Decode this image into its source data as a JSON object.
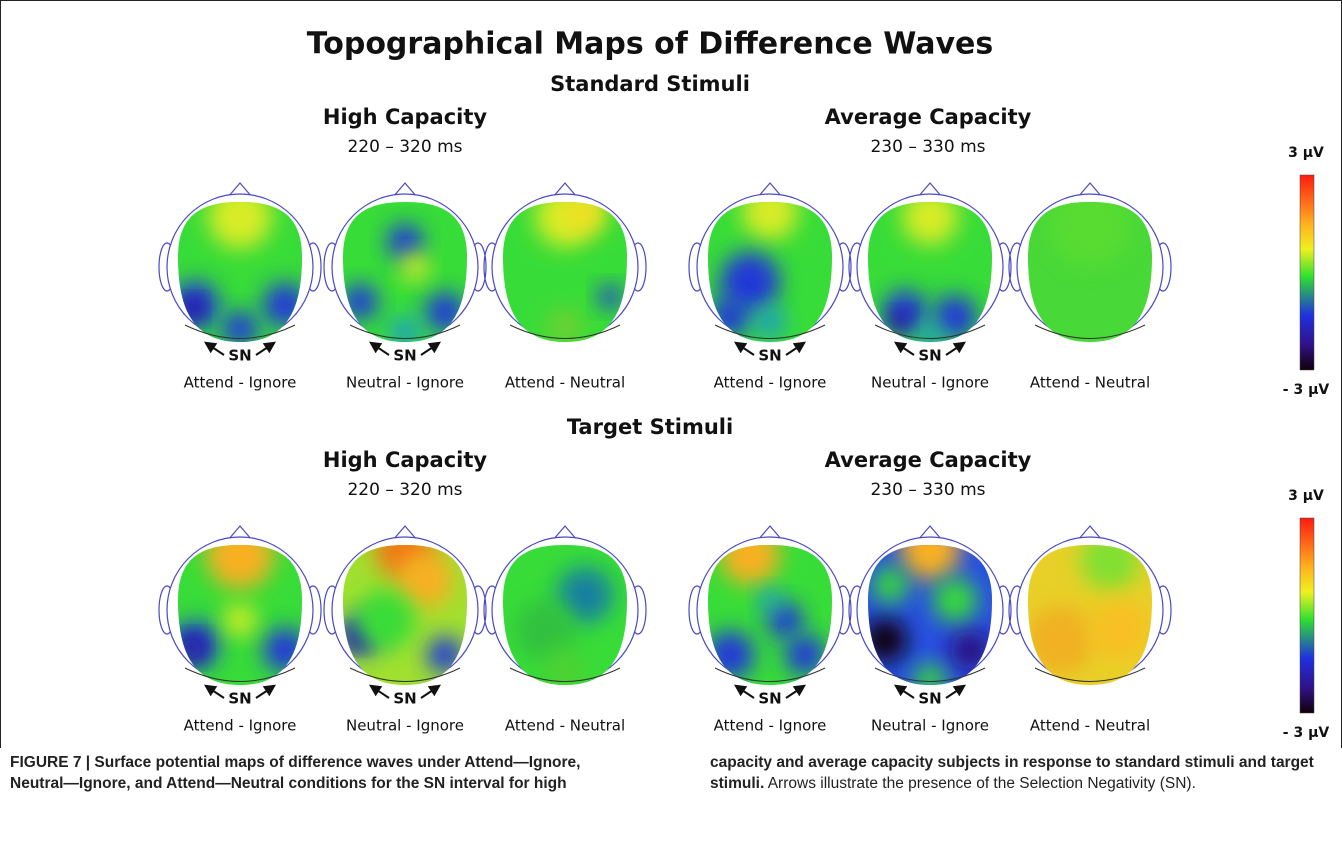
{
  "title": "Topographical Maps of Difference Waves",
  "sections": [
    {
      "title": "Standard Stimuli",
      "groups": [
        {
          "title": "High Capacity",
          "interval": "220 – 320 ms",
          "maps": [
            {
              "label": "Attend - Ignore",
              "marker": "SN"
            },
            {
              "label": "Neutral - Ignore",
              "marker": "SN"
            },
            {
              "label": "Attend - Neutral"
            }
          ]
        },
        {
          "title": "Average Capacity",
          "interval": "230 – 330 ms",
          "maps": [
            {
              "label": "Attend - Ignore",
              "marker": "SN"
            },
            {
              "label": "Neutral - Ignore",
              "marker": "SN"
            },
            {
              "label": "Attend - Neutral"
            }
          ]
        }
      ],
      "colorbar": {
        "max": "3 µV",
        "min": "- 3 µV"
      }
    },
    {
      "title": "Target Stimuli",
      "groups": [
        {
          "title": "High Capacity",
          "interval": "220 – 320 ms",
          "maps": [
            {
              "label": "Attend - Ignore",
              "marker": "SN"
            },
            {
              "label": "Neutral - Ignore",
              "marker": "SN"
            },
            {
              "label": "Attend - Neutral"
            }
          ]
        },
        {
          "title": "Average Capacity",
          "interval": "230 – 330 ms",
          "maps": [
            {
              "label": "Attend - Ignore",
              "marker": "SN"
            },
            {
              "label": "Neutral - Ignore",
              "marker": "SN"
            },
            {
              "label": "Attend - Neutral"
            }
          ]
        }
      ],
      "colorbar": {
        "max": "3 µV",
        "min": "- 3 µV"
      }
    }
  ],
  "caption": {
    "bold": "FIGURE 7 | Surface potential maps of difference waves under Attend—Ignore, Neutral—Ignore, and Attend—Neutral conditions for the SN interval for high capacity and average capacity subjects in response to standard stimuli and target stimuli.",
    "text": "Arrows illustrate the presence of the Selection Negativity (SN)."
  }
}
